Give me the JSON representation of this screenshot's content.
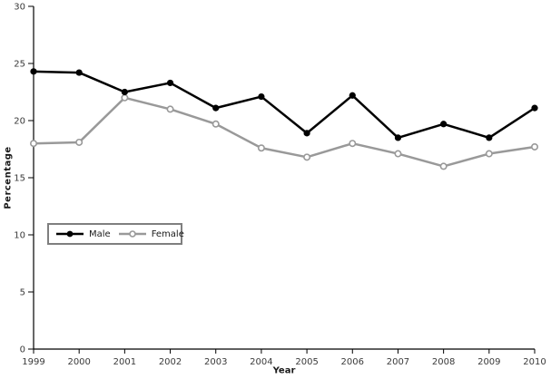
{
  "chart_data": {
    "type": "line",
    "x": [
      1999,
      2000,
      2001,
      2002,
      2003,
      2004,
      2005,
      2006,
      2007,
      2008,
      2009,
      2010
    ],
    "series": [
      {
        "name": "Male",
        "color": "#000000",
        "marker": "filled-circle",
        "values": [
          24.3,
          24.2,
          22.5,
          23.3,
          21.1,
          22.1,
          18.9,
          22.2,
          18.5,
          19.7,
          18.5,
          21.1
        ]
      },
      {
        "name": "Female",
        "color": "#999999",
        "marker": "open-circle",
        "values": [
          18.0,
          18.1,
          22.0,
          21.0,
          19.7,
          17.6,
          16.8,
          18.0,
          17.1,
          16.0,
          17.1,
          17.7
        ]
      }
    ],
    "title": "",
    "xlabel": "Year",
    "ylabel": "Percentage",
    "ylim": [
      0,
      30
    ],
    "yticks": [
      0,
      5,
      10,
      15,
      20,
      25,
      30
    ],
    "grid": false,
    "legend_position": "inside-left-middle",
    "axis_color": "#000000",
    "tick_label_color": "#3a3a3a"
  }
}
